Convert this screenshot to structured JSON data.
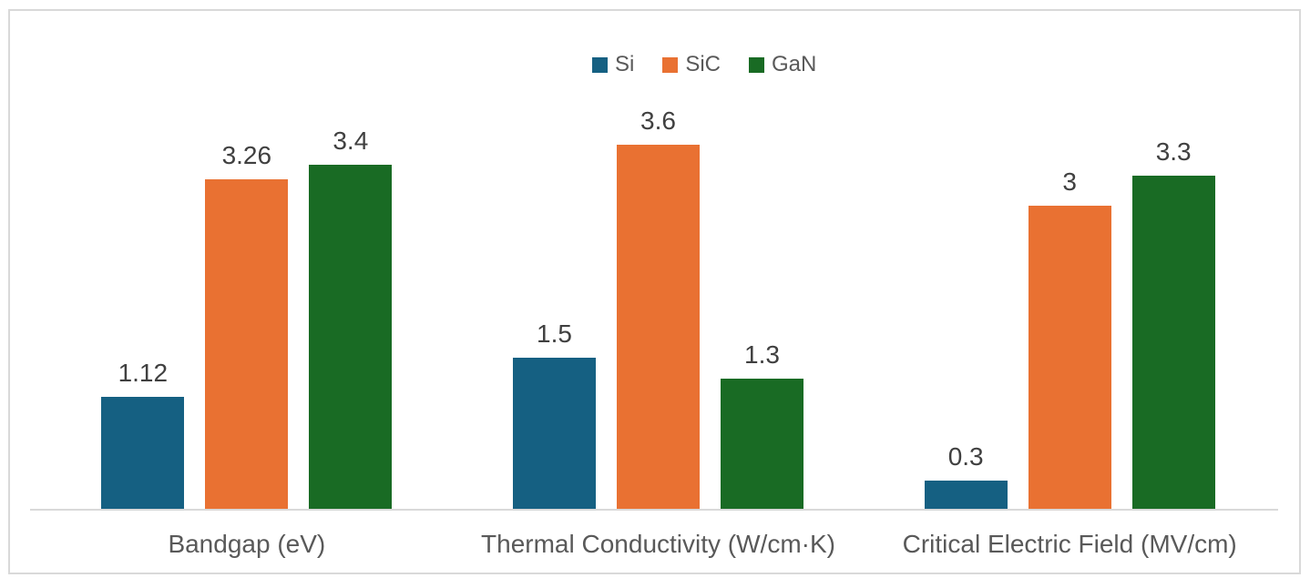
{
  "chart_data": {
    "type": "bar",
    "title": "",
    "categories": [
      "Bandgap (eV)",
      "Thermal Conductivity (W/cm·K)",
      "Critical Electric Field (MV/cm)"
    ],
    "series": [
      {
        "name": "Si",
        "color": "#156082",
        "values": [
          1.12,
          1.5,
          0.3
        ]
      },
      {
        "name": "SiC",
        "color": "#E97132",
        "values": [
          3.26,
          3.6,
          3
        ]
      },
      {
        "name": "GaN",
        "color": "#196B24",
        "values": [
          3.4,
          1.3,
          3.3
        ]
      }
    ],
    "data_labels_visible": true,
    "legend_position": "top",
    "grid": false,
    "ylim": [
      0,
      3.6
    ],
    "styles": {
      "data_label_color": "#404040",
      "category_label_color": "#595959",
      "legend_text_color": "#595959",
      "axis_line_color": "#D9D9D9",
      "card_border_color": "#D9D9D9",
      "background": "#FFFFFF"
    }
  }
}
